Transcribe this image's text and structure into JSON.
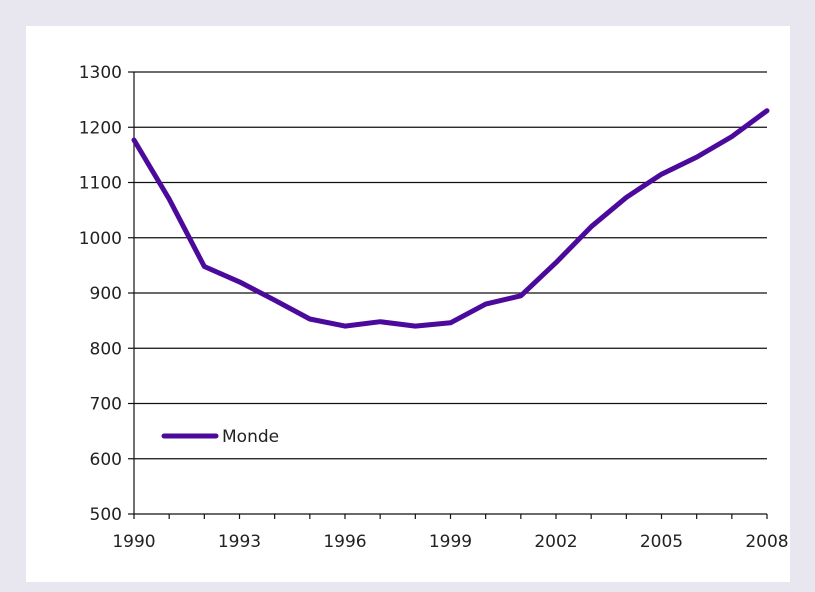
{
  "chart_data": {
    "type": "line",
    "title": "",
    "xlabel": "",
    "ylabel": "",
    "xlim": [
      1990,
      2008
    ],
    "ylim": [
      500,
      1300
    ],
    "yticks": [
      500,
      600,
      700,
      800,
      900,
      1000,
      1100,
      1200,
      1300
    ],
    "xticks": [
      1990,
      1993,
      1996,
      1999,
      2002,
      2005,
      2008
    ],
    "grid": "horizontal",
    "legend_position": "bottom-left",
    "series": [
      {
        "name": "Monde",
        "color": "#4b0a9c",
        "x": [
          1990,
          1991,
          1992,
          1993,
          1994,
          1995,
          1996,
          1997,
          1998,
          1999,
          2000,
          2001,
          2002,
          2003,
          2004,
          2005,
          2006,
          2007,
          2008
        ],
        "y": [
          1177,
          1070,
          948,
          920,
          887,
          853,
          840,
          848,
          840,
          846,
          880,
          895,
          955,
          1020,
          1073,
          1115,
          1146,
          1183,
          1230
        ]
      }
    ]
  }
}
